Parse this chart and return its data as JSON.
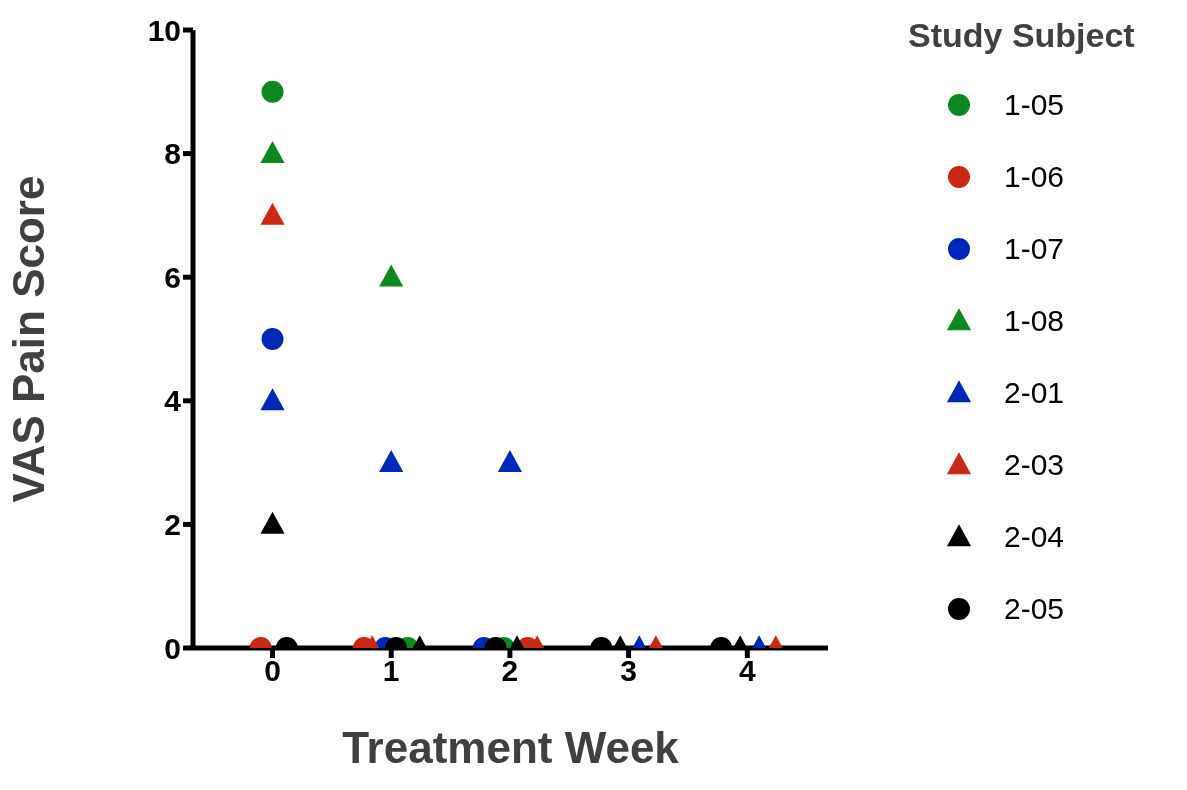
{
  "chart_data": {
    "type": "scatter",
    "xlabel": "Treatment Week",
    "ylabel": "VAS Pain Score",
    "legend_title": "Study Subject",
    "legend": "right",
    "grid": false,
    "xlim": [
      -0.67,
      4.68
    ],
    "xticks": [
      0,
      1,
      2,
      3,
      4
    ],
    "ylim": [
      0,
      10
    ],
    "yticks": [
      0,
      2,
      4,
      6,
      8,
      10
    ],
    "series": [
      {
        "name": "1-05",
        "color": "#0a8a1e",
        "marker": "circle",
        "x": [
          0,
          1.14,
          1.95
        ],
        "values": [
          9,
          0,
          0
        ]
      },
      {
        "name": "1-06",
        "color": "#c82814",
        "marker": "circle",
        "x": [
          -0.1,
          0.77,
          2.15
        ],
        "values": [
          0,
          0,
          0
        ]
      },
      {
        "name": "1-07",
        "color": "#0028b8",
        "marker": "circle",
        "x": [
          0,
          0.95,
          1.78
        ],
        "values": [
          5,
          0,
          0
        ]
      },
      {
        "name": "1-08",
        "color": "#0a8a1e",
        "marker": "triangle",
        "x": [
          0,
          1
        ],
        "values": [
          8,
          6
        ]
      },
      {
        "name": "2-01",
        "color": "#0028b8",
        "marker": "triangle",
        "x": [
          0,
          1,
          2,
          3.09,
          4.1
        ],
        "values": [
          4,
          3,
          3,
          0,
          0
        ]
      },
      {
        "name": "2-03",
        "color": "#c82814",
        "marker": "triangle",
        "x": [
          0,
          0.84,
          2.23,
          3.23,
          4.24
        ],
        "values": [
          7,
          0,
          0,
          0,
          0
        ]
      },
      {
        "name": "2-04",
        "color": "#000000",
        "marker": "triangle",
        "x": [
          0,
          1.24,
          2.06,
          2.93,
          3.94
        ],
        "values": [
          2,
          0,
          0,
          0,
          0
        ]
      },
      {
        "name": "2-05",
        "color": "#000000",
        "marker": "circle",
        "x": [
          0.12,
          1.04,
          1.88,
          2.77,
          3.78
        ],
        "values": [
          0,
          0,
          0,
          0,
          0
        ]
      }
    ]
  }
}
